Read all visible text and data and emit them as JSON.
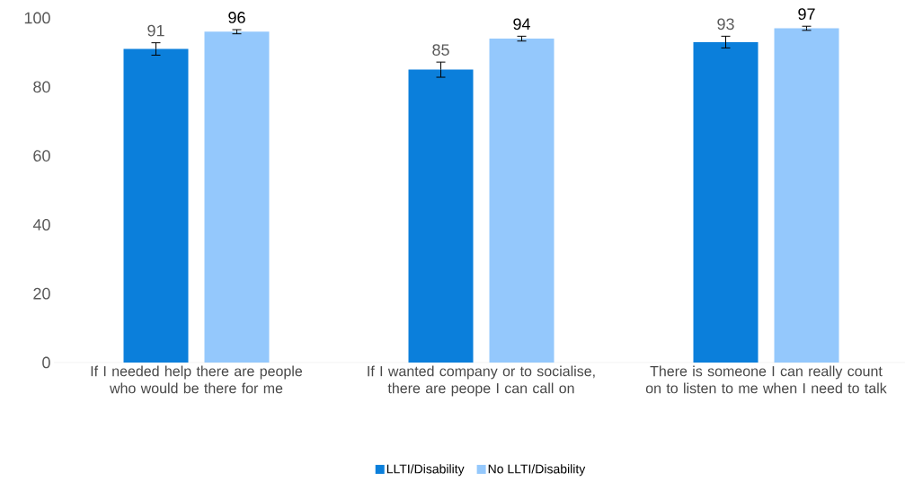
{
  "chart_data": {
    "type": "bar",
    "categories": [
      "If I needed help there are people who would be there for me",
      "If I wanted company or to socialise, there are peope I can call on",
      "There is someone I can really count on to listen to me when I need to talk"
    ],
    "series": [
      {
        "name": "LLTI/Disability",
        "color": "#0b7fdb",
        "values": [
          91,
          85,
          93
        ],
        "errors": [
          1.8,
          2.2,
          1.7
        ]
      },
      {
        "name": "No LLTI/Disability",
        "color": "#94c8fc",
        "values": [
          96,
          94,
          97
        ],
        "errors": [
          0.6,
          0.7,
          0.6
        ]
      }
    ],
    "ylim": [
      0,
      100
    ],
    "yticks": [
      0,
      20,
      40,
      60,
      80,
      100
    ],
    "data_labels": true,
    "grid": false,
    "legend": "bottom"
  }
}
